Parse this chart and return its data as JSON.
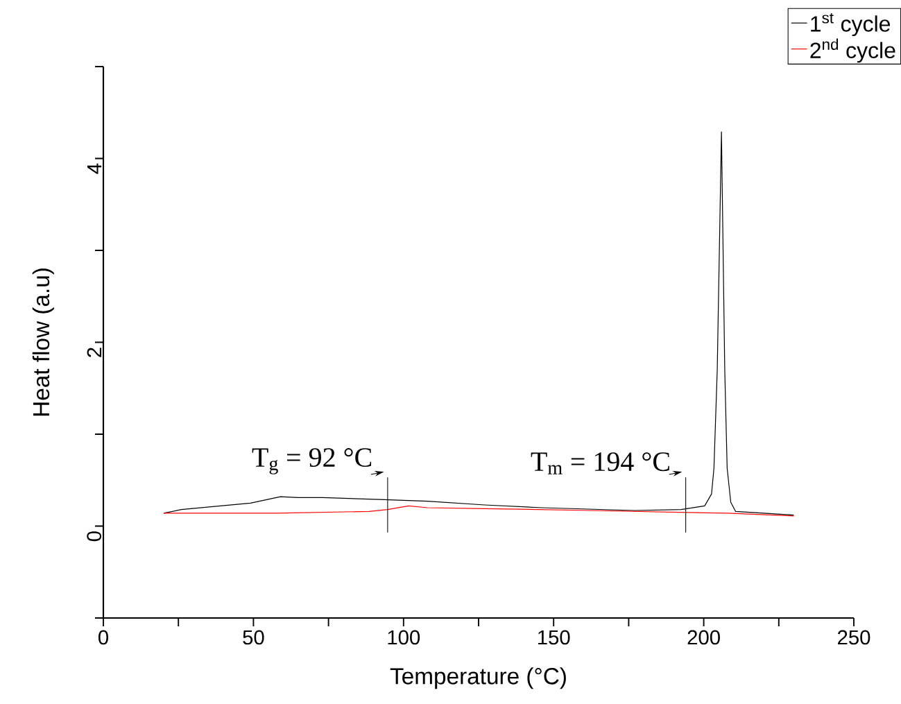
{
  "chart_data": {
    "type": "line",
    "xlabel": "Temperature (°C)",
    "ylabel": "Heat flow (a.u)",
    "xlim": [
      0,
      250
    ],
    "ylim": [
      -1,
      5
    ],
    "xticks": [
      0,
      {
        "value": 25,
        "label": null
      },
      50,
      {
        "value": 75,
        "label": null
      },
      100,
      {
        "value": 125,
        "label": null
      },
      150,
      {
        "value": 175,
        "label": null
      },
      200,
      {
        "value": 225,
        "label": null
      },
      250
    ],
    "yticks": [
      {
        "value": -1,
        "label": null
      },
      0,
      {
        "value": 1,
        "label": null
      },
      2,
      {
        "value": 3,
        "label": null
      },
      4,
      {
        "value": 5,
        "label": null
      }
    ],
    "legend": "top right",
    "series": [
      {
        "name": "1$^{st}$ cycle",
        "color": "#000000",
        "x": [
          20.1,
          26,
          39,
          49,
          59,
          65,
          73,
          92,
          108,
          127,
          146,
          177,
          192.5,
          200.3,
          202.6,
          203.4,
          204.5,
          205.9,
          207,
          207.8,
          209,
          210.6,
          220,
          230
        ],
        "values": [
          0.14,
          0.18,
          0.22,
          0.25,
          0.32,
          0.31,
          0.31,
          0.29,
          0.27,
          0.23,
          0.2,
          0.17,
          0.18,
          0.22,
          0.35,
          0.63,
          1.7,
          4.29,
          1.7,
          0.63,
          0.26,
          0.16,
          0.14,
          0.12
        ]
      },
      {
        "name": "2$^{nd}$ cycle",
        "color": "#ff0000",
        "x": [
          20.1,
          30,
          58,
          88.5,
          94.7,
          101.7,
          108,
          127,
          162,
          208,
          230
        ],
        "values": [
          0.14,
          0.14,
          0.14,
          0.16,
          0.18,
          0.22,
          0.2,
          0.19,
          0.17,
          0.14,
          0.11
        ]
      }
    ],
    "annotations": [
      {
        "text": "T$_{g}$ = 92 °C",
        "x": 94.7,
        "y": 0.18
      },
      {
        "text": "T$_{m}$ = 194 °C",
        "x": 194,
        "y": 0.18
      }
    ]
  }
}
